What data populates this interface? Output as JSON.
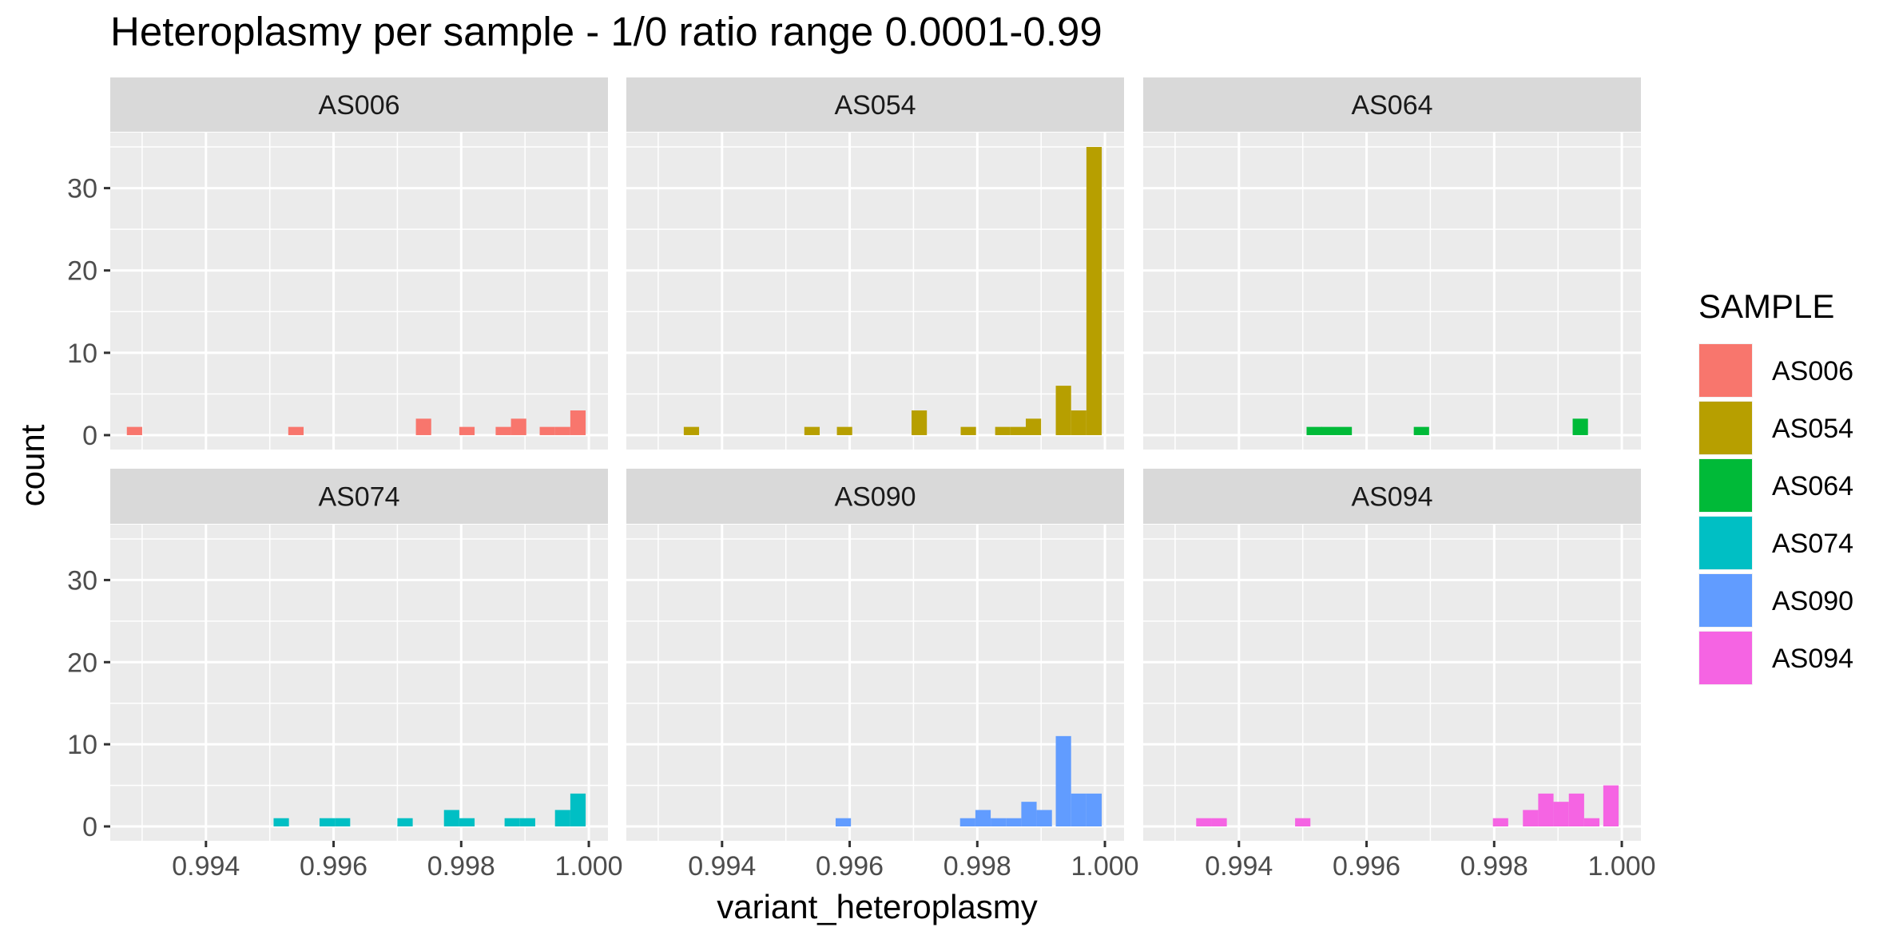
{
  "chart_data": {
    "type": "bar",
    "title": "Heteroplasmy per sample - 1/0 ratio range 0.0001-0.99",
    "xlabel": "variant_heteroplasmy",
    "ylabel": "count",
    "xlim": [
      0.9925,
      1.0003
    ],
    "ylim": [
      -1.75,
      36.75
    ],
    "x_ticks": [
      0.994,
      0.996,
      0.998,
      1.0
    ],
    "x_tick_labels": [
      "0.994",
      "0.996",
      "0.998",
      "1.000"
    ],
    "y_ticks": [
      0,
      10,
      20,
      30
    ],
    "y_tick_labels": [
      "0",
      "10",
      "20",
      "30"
    ],
    "grid": true,
    "bin_width": 0.00024,
    "facet_layout": {
      "rows": 2,
      "cols": 3
    },
    "legend": {
      "title": "SAMPLE",
      "placement": "right"
    },
    "series": [
      {
        "name": "AS006",
        "color": "#F8766D",
        "bins": [
          [
            0.99288,
            1
          ],
          [
            0.99541,
            1
          ],
          [
            0.99741,
            2
          ],
          [
            0.99809,
            1
          ],
          [
            0.99866,
            1
          ],
          [
            0.9989,
            2
          ],
          [
            0.99935,
            1
          ],
          [
            0.99959,
            1
          ],
          [
            0.99983,
            3
          ]
        ]
      },
      {
        "name": "AS054",
        "color": "#B79F00",
        "bins": [
          [
            0.99352,
            1
          ],
          [
            0.99541,
            1
          ],
          [
            0.99592,
            1
          ],
          [
            0.99709,
            3
          ],
          [
            0.99786,
            1
          ],
          [
            0.9984,
            1
          ],
          [
            0.99864,
            1
          ],
          [
            0.99888,
            2
          ],
          [
            0.99935,
            6
          ],
          [
            0.99959,
            3
          ],
          [
            0.99983,
            35
          ]
        ]
      },
      {
        "name": "AS064",
        "color": "#00BA38",
        "bins": [
          [
            0.99518,
            1
          ],
          [
            0.99541,
            1
          ],
          [
            0.99565,
            1
          ],
          [
            0.99686,
            1
          ],
          [
            0.99935,
            2
          ]
        ]
      },
      {
        "name": "AS074",
        "color": "#00BFC4",
        "bins": [
          [
            0.99518,
            1
          ],
          [
            0.9959,
            1
          ],
          [
            0.99614,
            1
          ],
          [
            0.99712,
            1
          ],
          [
            0.99785,
            2
          ],
          [
            0.99809,
            1
          ],
          [
            0.9988,
            1
          ],
          [
            0.99904,
            1
          ],
          [
            0.99959,
            2
          ],
          [
            0.99983,
            4
          ]
        ]
      },
      {
        "name": "AS090",
        "color": "#619CFF",
        "bins": [
          [
            0.9959,
            1
          ],
          [
            0.99785,
            1
          ],
          [
            0.99809,
            2
          ],
          [
            0.99833,
            1
          ],
          [
            0.99857,
            1
          ],
          [
            0.99881,
            3
          ],
          [
            0.99905,
            2
          ],
          [
            0.99935,
            11
          ],
          [
            0.99959,
            4
          ],
          [
            0.99983,
            4
          ]
        ]
      },
      {
        "name": "AS094",
        "color": "#F564E3",
        "bins": [
          [
            0.99345,
            1
          ],
          [
            0.99369,
            1
          ],
          [
            0.995,
            1
          ],
          [
            0.9981,
            1
          ],
          [
            0.99857,
            2
          ],
          [
            0.99881,
            4
          ],
          [
            0.99905,
            3
          ],
          [
            0.99929,
            4
          ],
          [
            0.99953,
            1
          ],
          [
            0.99983,
            5
          ]
        ]
      }
    ]
  }
}
